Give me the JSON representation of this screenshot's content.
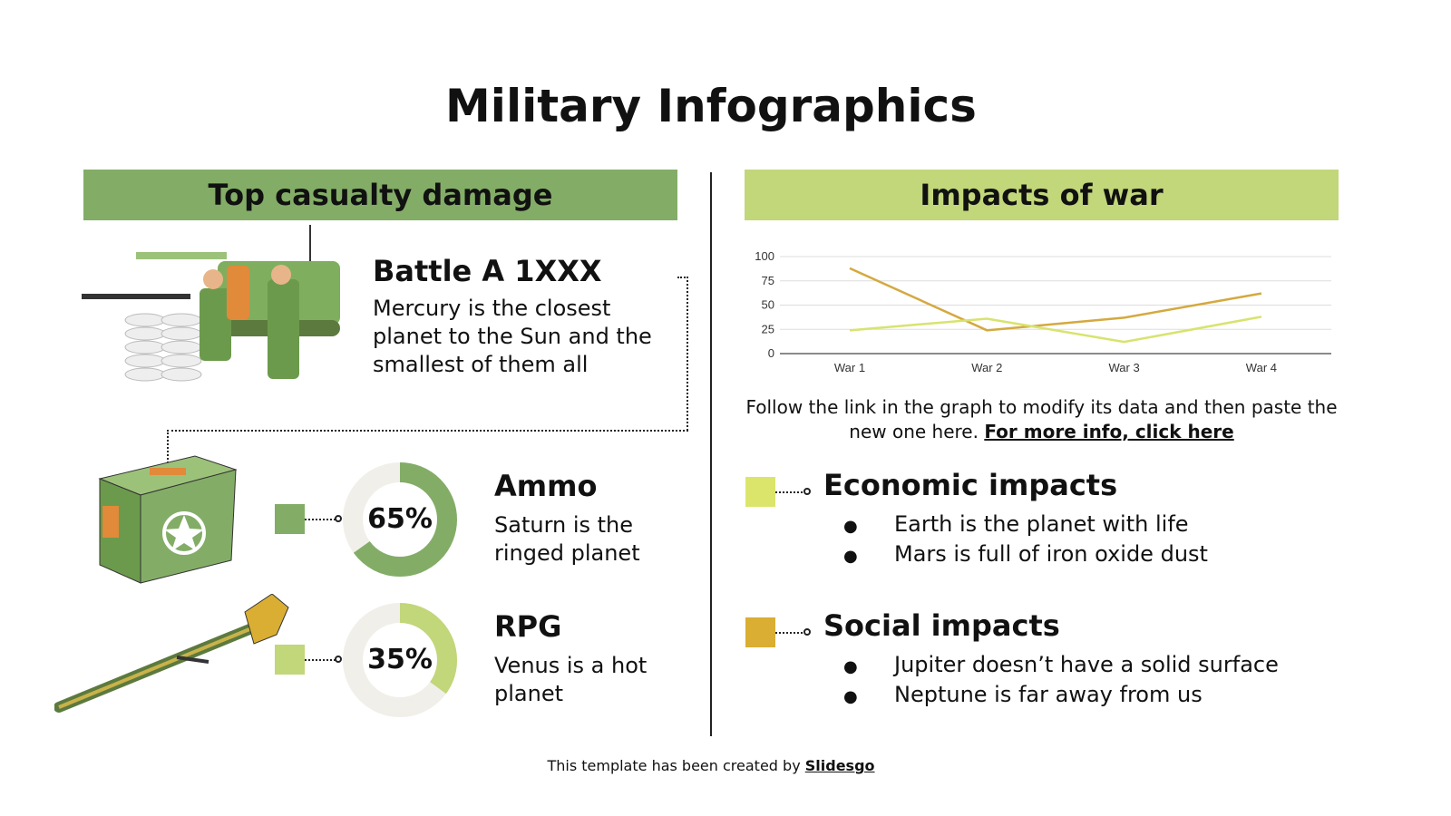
{
  "title": "Military Infographics",
  "left": {
    "header": "Top casualty damage",
    "header_color": "#83ad67",
    "battle": {
      "title": "Battle A 1XXX",
      "text": "Mercury is the closest planet to the Sun and the smallest of them all"
    },
    "items": [
      {
        "title": "Ammo",
        "text": "Saturn is the ringed planet",
        "percent": 65,
        "percent_label": "65%",
        "color": "#83ad67",
        "icon": "ammo-box-icon"
      },
      {
        "title": "RPG",
        "text": "Venus is a hot planet",
        "percent": 35,
        "percent_label": "35%",
        "color": "#c2d67a",
        "icon": "rpg-icon"
      }
    ],
    "donut_track_color": "#f1efe9"
  },
  "right": {
    "header": "Impacts of war",
    "header_color": "#c2d67a",
    "note": "Follow the link in the graph to modify its data and then paste the new one here.",
    "link": "For more info, click here",
    "sections": [
      {
        "title": "Economic impacts",
        "color": "#dbe56b",
        "bullets": [
          "Earth is the planet with life",
          "Mars is full of iron oxide dust"
        ]
      },
      {
        "title": "Social impacts",
        "color": "#d9ae33",
        "bullets": [
          "Jupiter doesn’t have a solid surface",
          "Neptune is far away from us"
        ]
      }
    ]
  },
  "chart_data": {
    "type": "line",
    "categories": [
      "War 1",
      "War 2",
      "War 3",
      "War 4"
    ],
    "yticks": [
      0,
      25,
      50,
      75,
      100
    ],
    "ylim": [
      0,
      100
    ],
    "grid": true,
    "series": [
      {
        "color": "#d4a93f",
        "values": [
          88,
          24,
          37,
          62
        ]
      },
      {
        "color": "#d8e36e",
        "values": [
          24,
          36,
          12,
          38
        ]
      }
    ]
  },
  "footer": {
    "text": "This template has been created by ",
    "link": "Slidesgo"
  }
}
